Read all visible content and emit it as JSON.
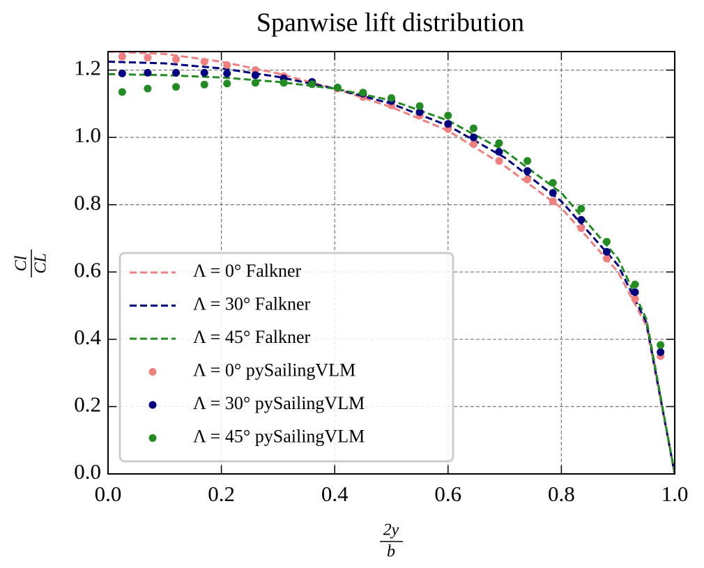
{
  "chart_data": {
    "type": "line",
    "title": "Spanwise lift distribution",
    "xlabel": {
      "numerator": "2y",
      "denominator": "b"
    },
    "ylabel": {
      "numerator": "Cl",
      "denominator": "CL"
    },
    "xlim": [
      0,
      1
    ],
    "ylim": [
      0,
      1.255
    ],
    "xticks": [
      {
        "value": 0,
        "label": "0.0"
      },
      0.2,
      0.4,
      0.6,
      0.8,
      {
        "value": 1,
        "label": "1.0"
      }
    ],
    "yticks": [
      {
        "value": 0,
        "label": "0.0"
      },
      0.2,
      0.4,
      0.6,
      0.8,
      {
        "value": 1,
        "label": "1.0"
      },
      1.2
    ],
    "grid": true,
    "legend": "lower left",
    "series": [
      {
        "name": "Λ = 0° Falkner",
        "kind": "line",
        "style": "dashed",
        "color": "#f08080",
        "x": [
          0,
          0.1,
          0.2,
          0.3,
          0.4,
          0.5,
          0.6,
          0.7,
          0.8,
          0.9,
          0.95,
          1
        ],
        "values": [
          1.255,
          1.248,
          1.225,
          1.19,
          1.145,
          1.09,
          1.02,
          0.915,
          0.79,
          0.6,
          0.44,
          0
        ]
      },
      {
        "name": "Λ = 30° Falkner",
        "kind": "line",
        "style": "dashed",
        "color": "#000080",
        "x": [
          0,
          0.1,
          0.2,
          0.3,
          0.4,
          0.5,
          0.6,
          0.7,
          0.8,
          0.9,
          0.95,
          1
        ],
        "values": [
          1.225,
          1.22,
          1.205,
          1.18,
          1.145,
          1.1,
          1.035,
          0.94,
          0.81,
          0.62,
          0.45,
          0
        ]
      },
      {
        "name": "Λ = 45° Falkner",
        "kind": "line",
        "style": "dashed",
        "color": "#228b22",
        "x": [
          0,
          0.1,
          0.2,
          0.3,
          0.4,
          0.5,
          0.6,
          0.7,
          0.8,
          0.9,
          0.95,
          1
        ],
        "values": [
          1.188,
          1.185,
          1.178,
          1.165,
          1.145,
          1.11,
          1.05,
          0.96,
          0.835,
          0.64,
          0.46,
          0
        ]
      },
      {
        "name": "Λ = 0° pySailingVLM",
        "kind": "scatter",
        "color": "#f08080",
        "x": [
          0.025,
          0.07,
          0.12,
          0.17,
          0.21,
          0.26,
          0.31,
          0.36,
          0.405,
          0.45,
          0.5,
          0.55,
          0.6,
          0.645,
          0.69,
          0.74,
          0.785,
          0.835,
          0.88,
          0.93,
          0.975
        ],
        "values": [
          1.24,
          1.237,
          1.232,
          1.225,
          1.215,
          1.2,
          1.182,
          1.163,
          1.145,
          1.12,
          1.095,
          1.065,
          1.025,
          0.98,
          0.93,
          0.875,
          0.81,
          0.73,
          0.64,
          0.52,
          0.35
        ]
      },
      {
        "name": "Λ = 30° pySailingVLM",
        "kind": "scatter",
        "color": "#000080",
        "x": [
          0.025,
          0.07,
          0.12,
          0.17,
          0.21,
          0.26,
          0.31,
          0.36,
          0.405,
          0.45,
          0.5,
          0.55,
          0.6,
          0.645,
          0.69,
          0.74,
          0.785,
          0.835,
          0.88,
          0.93,
          0.975
        ],
        "values": [
          1.19,
          1.192,
          1.192,
          1.192,
          1.19,
          1.185,
          1.175,
          1.165,
          1.148,
          1.13,
          1.108,
          1.075,
          1.04,
          1.0,
          0.957,
          0.9,
          0.835,
          0.755,
          0.66,
          0.54,
          0.362
        ]
      },
      {
        "name": "Λ = 45° pySailingVLM",
        "kind": "scatter",
        "color": "#228b22",
        "x": [
          0.025,
          0.07,
          0.12,
          0.17,
          0.21,
          0.26,
          0.31,
          0.36,
          0.405,
          0.45,
          0.5,
          0.55,
          0.6,
          0.645,
          0.69,
          0.74,
          0.785,
          0.835,
          0.88,
          0.93,
          0.975
        ],
        "values": [
          1.135,
          1.145,
          1.15,
          1.157,
          1.16,
          1.162,
          1.162,
          1.158,
          1.148,
          1.133,
          1.117,
          1.093,
          1.065,
          1.027,
          0.983,
          0.93,
          0.865,
          0.788,
          0.69,
          0.563,
          0.383
        ]
      }
    ]
  }
}
